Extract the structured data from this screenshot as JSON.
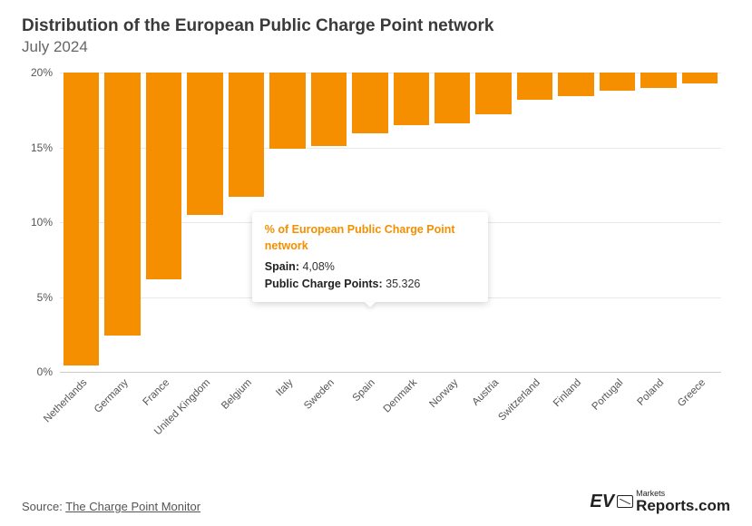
{
  "title": "Distribution of the European Public Charge Point network",
  "subtitle": "July 2024",
  "chart": {
    "type": "bar",
    "bar_color": "#f58f00",
    "grid_color": "#e8e8e8",
    "baseline_color": "#cccccc",
    "label_color": "#555555",
    "background_color": "#ffffff",
    "ylim": [
      0,
      20
    ],
    "ytick_step": 5,
    "y_suffix": "%",
    "categories": [
      "Netherlands",
      "Germany",
      "France",
      "United Kingdom",
      "Belgium",
      "Italy",
      "Sweden",
      "Spain",
      "Denmark",
      "Norway",
      "Austria",
      "Switzerland",
      "Finland",
      "Portugal",
      "Poland",
      "Greece"
    ],
    "values": [
      19.6,
      17.6,
      13.8,
      9.5,
      8.3,
      5.1,
      4.9,
      4.08,
      3.5,
      3.4,
      2.8,
      1.8,
      1.6,
      1.2,
      1.0,
      0.7
    ]
  },
  "tooltip": {
    "title": "% of European Public Charge Point network",
    "country_label": "Spain:",
    "country_value": "4,08%",
    "points_label": "Public Charge Points:",
    "points_value": "35.326",
    "target_index": 7
  },
  "footer": {
    "source_prefix": "Source: ",
    "source_link": "The Charge Point Monitor",
    "logo_ev": "EV",
    "logo_markets": "Markets",
    "logo_reports": "Reports.com"
  }
}
